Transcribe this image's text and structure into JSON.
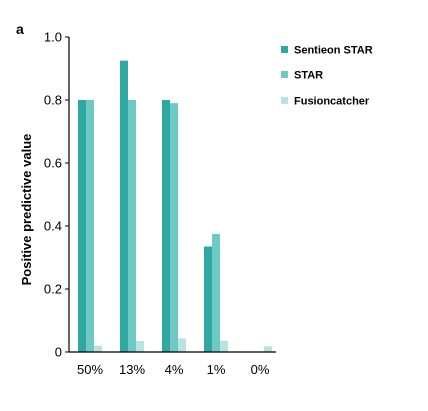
{
  "chart_data": {
    "type": "bar",
    "panel_label": "a",
    "ylabel": "Positive predictive value",
    "xlabel": "",
    "ylim": [
      0,
      1.0
    ],
    "yticks": [
      "0",
      "0.2",
      "0.4",
      "0.6",
      "0.8",
      "1.0"
    ],
    "ytick_values": [
      0,
      0.2,
      0.4,
      0.6,
      0.8,
      1.0
    ],
    "categories": [
      "50%",
      "13%",
      "4%",
      "1%",
      "0%"
    ],
    "series": [
      {
        "name": "Sentieon STAR",
        "color": "#2fa8a4",
        "values": [
          0.8,
          0.925,
          0.8,
          0.335,
          0.0
        ]
      },
      {
        "name": "STAR",
        "color": "#6ec9c6",
        "values": [
          0.8,
          0.8,
          0.79,
          0.375,
          0.0
        ]
      },
      {
        "name": "Fusioncatcher",
        "color": "#b9e3e1",
        "values": [
          0.02,
          0.035,
          0.043,
          0.036,
          0.018
        ]
      }
    ],
    "grid": false,
    "legend_position": "top-right"
  }
}
